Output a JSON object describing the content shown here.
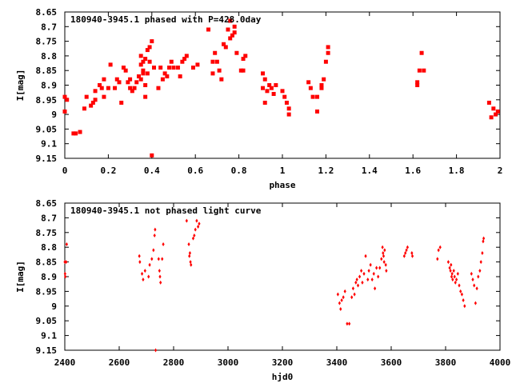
{
  "chart_data": [
    {
      "type": "scatter",
      "title": "180940-3945.1 phased with P=428.0day",
      "xlabel": "phase",
      "ylabel": "I[mag]",
      "xlim": [
        0,
        2
      ],
      "ylim": [
        8.65,
        9.15
      ],
      "y_inverted": true,
      "grid": false,
      "legend": "none",
      "marker_color": "#ff0000",
      "xticks": [
        "0",
        "0.2",
        "0.4",
        "0.6",
        "0.8",
        "1",
        "1.2",
        "1.4",
        "1.6",
        "1.8",
        "2"
      ],
      "xtick_values": [
        0,
        0.2,
        0.4,
        0.6,
        0.8,
        1,
        1.2,
        1.4,
        1.6,
        1.8,
        2
      ],
      "yticks": [
        "8.65",
        "8.7",
        "8.75",
        "8.8",
        "8.85",
        "8.9",
        "8.95",
        "9",
        "9.05",
        "9.1",
        "9.15"
      ],
      "ytick_values": [
        8.65,
        8.7,
        8.75,
        8.8,
        8.85,
        8.9,
        8.95,
        9.0,
        9.05,
        9.1,
        9.15
      ],
      "series": [
        {
          "points": [
            [
              0.0,
              8.94
            ],
            [
              0.0,
              8.99
            ],
            [
              0.01,
              8.95
            ],
            [
              0.04,
              9.065
            ],
            [
              0.05,
              9.065
            ],
            [
              0.07,
              9.06
            ],
            [
              0.09,
              8.98
            ],
            [
              0.1,
              8.94
            ],
            [
              0.12,
              8.97
            ],
            [
              0.13,
              8.96
            ],
            [
              0.14,
              8.95
            ],
            [
              0.14,
              8.92
            ],
            [
              0.16,
              8.9
            ],
            [
              0.17,
              8.91
            ],
            [
              0.18,
              8.88
            ],
            [
              0.18,
              8.94
            ],
            [
              0.2,
              8.91
            ],
            [
              0.21,
              8.83
            ],
            [
              0.23,
              8.91
            ],
            [
              0.24,
              8.88
            ],
            [
              0.25,
              8.89
            ],
            [
              0.26,
              8.96
            ],
            [
              0.27,
              8.84
            ],
            [
              0.28,
              8.85
            ],
            [
              0.29,
              8.89
            ],
            [
              0.3,
              8.88
            ],
            [
              0.3,
              8.91
            ],
            [
              0.31,
              8.92
            ],
            [
              0.32,
              8.91
            ],
            [
              0.33,
              8.89
            ],
            [
              0.34,
              8.87
            ],
            [
              0.35,
              8.83
            ],
            [
              0.35,
              8.88
            ],
            [
              0.35,
              8.8
            ],
            [
              0.36,
              8.82
            ],
            [
              0.36,
              8.85
            ],
            [
              0.36,
              8.86
            ],
            [
              0.37,
              8.81
            ],
            [
              0.37,
              8.9
            ],
            [
              0.37,
              8.94
            ],
            [
              0.38,
              8.78
            ],
            [
              0.38,
              8.86
            ],
            [
              0.39,
              8.77
            ],
            [
              0.39,
              8.82
            ],
            [
              0.4,
              8.75
            ],
            [
              0.4,
              9.14
            ],
            [
              0.41,
              8.84
            ],
            [
              0.43,
              8.91
            ],
            [
              0.44,
              8.84
            ],
            [
              0.45,
              8.88
            ],
            [
              0.46,
              8.86
            ],
            [
              0.47,
              8.87
            ],
            [
              0.48,
              8.84
            ],
            [
              0.49,
              8.82
            ],
            [
              0.5,
              8.84
            ],
            [
              0.52,
              8.84
            ],
            [
              0.53,
              8.87
            ],
            [
              0.54,
              8.82
            ],
            [
              0.55,
              8.81
            ],
            [
              0.56,
              8.8
            ],
            [
              0.59,
              8.84
            ],
            [
              0.61,
              8.83
            ],
            [
              0.66,
              8.71
            ],
            [
              0.68,
              8.82
            ],
            [
              0.68,
              8.86
            ],
            [
              0.69,
              8.79
            ],
            [
              0.7,
              8.82
            ],
            [
              0.71,
              8.85
            ],
            [
              0.72,
              8.88
            ],
            [
              0.73,
              8.76
            ],
            [
              0.74,
              8.77
            ],
            [
              0.75,
              8.71
            ],
            [
              0.76,
              8.68
            ],
            [
              0.76,
              8.74
            ],
            [
              0.77,
              8.73
            ],
            [
              0.78,
              8.7
            ],
            [
              0.78,
              8.72
            ],
            [
              0.79,
              8.79
            ],
            [
              0.81,
              8.85
            ],
            [
              0.82,
              8.85
            ],
            [
              0.82,
              8.81
            ],
            [
              0.83,
              8.8
            ],
            [
              0.91,
              8.86
            ],
            [
              0.91,
              8.91
            ],
            [
              0.92,
              8.88
            ],
            [
              0.92,
              8.96
            ],
            [
              0.93,
              8.92
            ],
            [
              0.94,
              8.9
            ],
            [
              0.95,
              8.91
            ],
            [
              0.96,
              8.93
            ],
            [
              0.97,
              8.9
            ],
            [
              1.0,
              8.92
            ],
            [
              1.01,
              8.94
            ],
            [
              1.02,
              8.96
            ],
            [
              1.03,
              8.98
            ],
            [
              1.03,
              9.0
            ],
            [
              1.12,
              8.89
            ],
            [
              1.13,
              8.91
            ],
            [
              1.14,
              8.94
            ],
            [
              1.16,
              8.94
            ],
            [
              1.16,
              8.99
            ],
            [
              1.18,
              8.9
            ],
            [
              1.18,
              8.91
            ],
            [
              1.19,
              8.88
            ],
            [
              1.2,
              8.82
            ],
            [
              1.21,
              8.77
            ],
            [
              1.21,
              8.79
            ],
            [
              1.62,
              8.89
            ],
            [
              1.62,
              8.9
            ],
            [
              1.63,
              8.85
            ],
            [
              1.64,
              8.79
            ],
            [
              1.65,
              8.85
            ],
            [
              1.95,
              8.96
            ],
            [
              1.96,
              9.01
            ],
            [
              1.97,
              8.98
            ],
            [
              1.98,
              9.0
            ],
            [
              1.99,
              8.99
            ]
          ]
        }
      ]
    },
    {
      "type": "scatter",
      "title": "180940-3945.1 not phased light curve",
      "xlabel": "hjd0",
      "ylabel": "I[mag]",
      "xlim": [
        2400,
        4000
      ],
      "ylim": [
        8.65,
        9.15
      ],
      "y_inverted": true,
      "grid": false,
      "legend": "none",
      "marker_color": "#ff0000",
      "xticks": [
        "2400",
        "2600",
        "2800",
        "3000",
        "3200",
        "3400",
        "3600",
        "3800",
        "4000"
      ],
      "xtick_values": [
        2400,
        2600,
        2800,
        3000,
        3200,
        3400,
        3600,
        3800,
        4000
      ],
      "yticks": [
        "8.65",
        "8.7",
        "8.75",
        "8.8",
        "8.85",
        "8.9",
        "8.95",
        "9",
        "9.05",
        "9.1",
        "9.15"
      ],
      "ytick_values": [
        8.65,
        8.7,
        8.75,
        8.8,
        8.85,
        8.9,
        8.95,
        9.0,
        9.05,
        9.1,
        9.15
      ],
      "series": [
        {
          "points": [
            [
              2400,
              8.85
            ],
            [
              2401,
              8.89
            ],
            [
              2402,
              8.9
            ],
            [
              2405,
              8.85
            ],
            [
              2407,
              8.79
            ],
            [
              2674,
              8.83
            ],
            [
              2676,
              8.85
            ],
            [
              2684,
              8.89
            ],
            [
              2688,
              8.91
            ],
            [
              2695,
              8.88
            ],
            [
              2708,
              8.9
            ],
            [
              2712,
              8.86
            ],
            [
              2720,
              8.84
            ],
            [
              2726,
              8.81
            ],
            [
              2730,
              8.76
            ],
            [
              2732,
              8.74
            ],
            [
              2734,
              9.15
            ],
            [
              2745,
              8.84
            ],
            [
              2748,
              8.88
            ],
            [
              2750,
              8.9
            ],
            [
              2752,
              8.92
            ],
            [
              2758,
              8.84
            ],
            [
              2762,
              8.79
            ],
            [
              2848,
              8.71
            ],
            [
              2856,
              8.79
            ],
            [
              2858,
              8.83
            ],
            [
              2860,
              8.82
            ],
            [
              2862,
              8.85
            ],
            [
              2864,
              8.86
            ],
            [
              2872,
              8.77
            ],
            [
              2876,
              8.76
            ],
            [
              2880,
              8.74
            ],
            [
              2885,
              8.71
            ],
            [
              2890,
              8.73
            ],
            [
              2894,
              8.72
            ],
            [
              3404,
              8.96
            ],
            [
              3410,
              8.99
            ],
            [
              3414,
              9.01
            ],
            [
              3418,
              8.98
            ],
            [
              3424,
              8.97
            ],
            [
              3430,
              8.95
            ],
            [
              3438,
              9.06
            ],
            [
              3446,
              9.06
            ],
            [
              3455,
              8.97
            ],
            [
              3460,
              8.94
            ],
            [
              3465,
              8.96
            ],
            [
              3470,
              8.92
            ],
            [
              3474,
              8.91
            ],
            [
              3478,
              8.93
            ],
            [
              3484,
              8.9
            ],
            [
              3490,
              8.88
            ],
            [
              3494,
              8.92
            ],
            [
              3500,
              8.89
            ],
            [
              3506,
              8.83
            ],
            [
              3514,
              8.91
            ],
            [
              3518,
              8.88
            ],
            [
              3524,
              8.86
            ],
            [
              3530,
              8.91
            ],
            [
              3536,
              8.89
            ],
            [
              3540,
              8.94
            ],
            [
              3546,
              8.87
            ],
            [
              3552,
              8.9
            ],
            [
              3558,
              8.87
            ],
            [
              3564,
              8.84
            ],
            [
              3568,
              8.8
            ],
            [
              3570,
              8.82
            ],
            [
              3572,
              8.83
            ],
            [
              3574,
              8.85
            ],
            [
              3576,
              8.81
            ],
            [
              3580,
              8.86
            ],
            [
              3582,
              8.88
            ],
            [
              3648,
              8.83
            ],
            [
              3652,
              8.82
            ],
            [
              3656,
              8.81
            ],
            [
              3660,
              8.8
            ],
            [
              3676,
              8.82
            ],
            [
              3678,
              8.83
            ],
            [
              3770,
              8.84
            ],
            [
              3774,
              8.81
            ],
            [
              3780,
              8.8
            ],
            [
              3810,
              8.85
            ],
            [
              3815,
              8.87
            ],
            [
              3818,
              8.88
            ],
            [
              3820,
              8.86
            ],
            [
              3822,
              8.9
            ],
            [
              3824,
              8.89
            ],
            [
              3826,
              8.91
            ],
            [
              3830,
              8.88
            ],
            [
              3833,
              8.9
            ],
            [
              3836,
              8.92
            ],
            [
              3840,
              8.91
            ],
            [
              3845,
              8.89
            ],
            [
              3850,
              8.93
            ],
            [
              3855,
              8.95
            ],
            [
              3860,
              8.96
            ],
            [
              3865,
              8.98
            ],
            [
              3870,
              9.0
            ],
            [
              3895,
              8.89
            ],
            [
              3900,
              8.91
            ],
            [
              3905,
              8.93
            ],
            [
              3910,
              8.99
            ],
            [
              3915,
              8.94
            ],
            [
              3920,
              8.9
            ],
            [
              3926,
              8.88
            ],
            [
              3930,
              8.85
            ],
            [
              3935,
              8.82
            ],
            [
              3938,
              8.78
            ],
            [
              3940,
              8.77
            ]
          ]
        }
      ]
    }
  ]
}
